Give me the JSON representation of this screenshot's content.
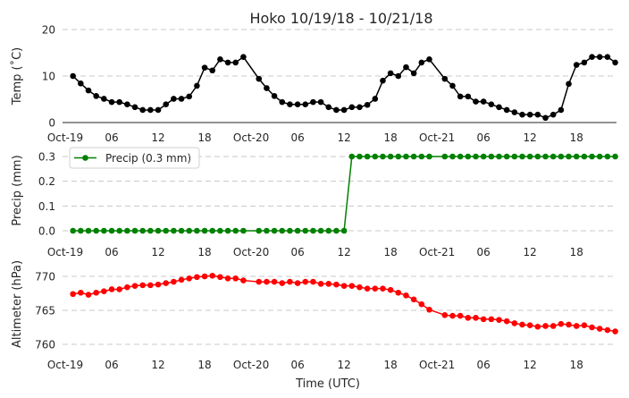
{
  "chart_data": [
    {
      "type": "line",
      "title": "Hoko 10/19/18 - 10/21/18",
      "ylabel": "Temp (˚C)",
      "ylim": [
        0,
        20
      ],
      "yticks": [
        "0",
        "10",
        "20"
      ],
      "color": "#000000",
      "x_unit": "hours since Oct-19 00 UTC",
      "xticks": [
        "Oct-19",
        "06",
        "12",
        "18",
        "Oct-20",
        "06",
        "12",
        "18",
        "Oct-21",
        "06",
        "12",
        "18"
      ],
      "values": [
        null,
        10.0,
        8.4,
        6.9,
        5.7,
        5.1,
        4.4,
        4.4,
        3.9,
        3.3,
        2.7,
        2.7,
        2.7,
        3.9,
        5.1,
        5.1,
        5.6,
        7.9,
        11.8,
        11.2,
        13.6,
        12.9,
        12.9,
        14.1,
        null,
        9.4,
        7.4,
        5.7,
        4.4,
        3.9,
        3.9,
        3.9,
        4.4,
        4.4,
        3.3,
        2.7,
        2.7,
        3.3,
        3.3,
        3.8,
        5.1,
        9.0,
        10.6,
        10.0,
        11.9,
        10.6,
        12.9,
        13.6,
        null,
        9.4,
        7.9,
        5.6,
        5.6,
        4.5,
        4.5,
        3.9,
        3.3,
        2.7,
        2.2,
        1.7,
        1.7,
        1.7,
        1.0,
        1.7,
        2.7,
        8.3,
        12.4,
        12.9,
        14.1,
        14.1,
        14.1,
        12.9
      ]
    },
    {
      "type": "line",
      "ylabel": "Precip (mm)",
      "ylim": [
        0,
        0.3
      ],
      "yticks": [
        "0.0",
        "0.1",
        "0.2",
        "0.3"
      ],
      "legend": "Precip (0.3 mm)",
      "legend_position": "top-left",
      "color": "#008000",
      "xticks": [
        "Oct-19",
        "06",
        "12",
        "18",
        "Oct-20",
        "06",
        "12",
        "18",
        "Oct-21",
        "06",
        "12",
        "18"
      ],
      "values": [
        null,
        0,
        0,
        0,
        0,
        0,
        0,
        0,
        0,
        0,
        0,
        0,
        0,
        0,
        0,
        0,
        0,
        0,
        0,
        0,
        0,
        0,
        0,
        0,
        null,
        0,
        0,
        0,
        0,
        0,
        0,
        0,
        0,
        0,
        0,
        0,
        0,
        0.3,
        0.3,
        0.3,
        0.3,
        0.3,
        0.3,
        0.3,
        0.3,
        0.3,
        0.3,
        0.3,
        null,
        0.3,
        0.3,
        0.3,
        0.3,
        0.3,
        0.3,
        0.3,
        0.3,
        0.3,
        0.3,
        0.3,
        0.3,
        0.3,
        0.3,
        0.3,
        0.3,
        0.3,
        0.3,
        0.3,
        0.3,
        0.3,
        0.3,
        0.3
      ]
    },
    {
      "type": "line",
      "ylabel": "Altimeter (hPa)",
      "xlabel": "Time (UTC)",
      "ylim": [
        760,
        770
      ],
      "yticks": [
        "760",
        "765",
        "770"
      ],
      "color": "#ff0000",
      "xticks": [
        "Oct-19",
        "06",
        "12",
        "18",
        "Oct-20",
        "06",
        "12",
        "18",
        "Oct-21",
        "06",
        "12",
        "18"
      ],
      "values": [
        null,
        767.4,
        767.6,
        767.3,
        767.6,
        767.8,
        768.1,
        768.1,
        768.4,
        768.6,
        768.7,
        768.7,
        768.8,
        769.0,
        769.2,
        769.5,
        769.7,
        769.9,
        770.0,
        770.1,
        769.9,
        769.7,
        769.7,
        769.4,
        null,
        769.2,
        769.2,
        769.2,
        769.0,
        769.2,
        769.0,
        769.2,
        769.2,
        768.9,
        768.9,
        768.8,
        768.6,
        768.6,
        768.4,
        768.2,
        768.2,
        768.2,
        768.0,
        767.6,
        767.2,
        766.6,
        765.9,
        765.1,
        null,
        764.3,
        764.2,
        764.2,
        763.9,
        763.9,
        763.7,
        763.7,
        763.6,
        763.4,
        763.1,
        762.9,
        762.8,
        762.6,
        762.7,
        762.7,
        763.0,
        762.9,
        762.7,
        762.8,
        762.5,
        762.3,
        762.1,
        761.9
      ]
    }
  ]
}
